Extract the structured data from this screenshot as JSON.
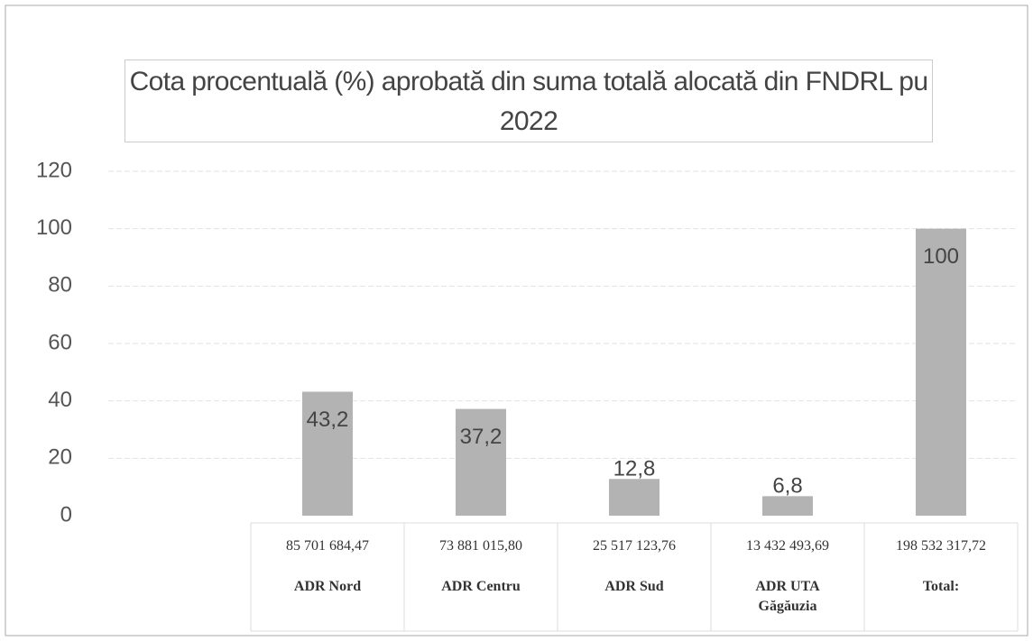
{
  "chart_data": {
    "type": "bar",
    "title": "Cota procentuală (%) aprobată din suma totală alocată din FNDRL pu 2022",
    "categories": [
      "ADR Nord",
      "ADR Centru",
      "ADR Sud",
      "ADR UTA Găgăuzia",
      "Total:"
    ],
    "amounts": [
      "85 701 684,47",
      "73 881 015,80",
      "25 517 123,76",
      "13 432 493,69",
      "198 532 317,72"
    ],
    "values": [
      43.2,
      37.2,
      12.8,
      6.8,
      100
    ],
    "value_labels": [
      "43,2",
      "37,2",
      "12,8",
      "6,8",
      "100"
    ],
    "color": "#b3b3b3",
    "ylim": [
      0,
      120
    ],
    "yticks": [
      0,
      20,
      40,
      60,
      80,
      100,
      120
    ],
    "grid": true
  }
}
